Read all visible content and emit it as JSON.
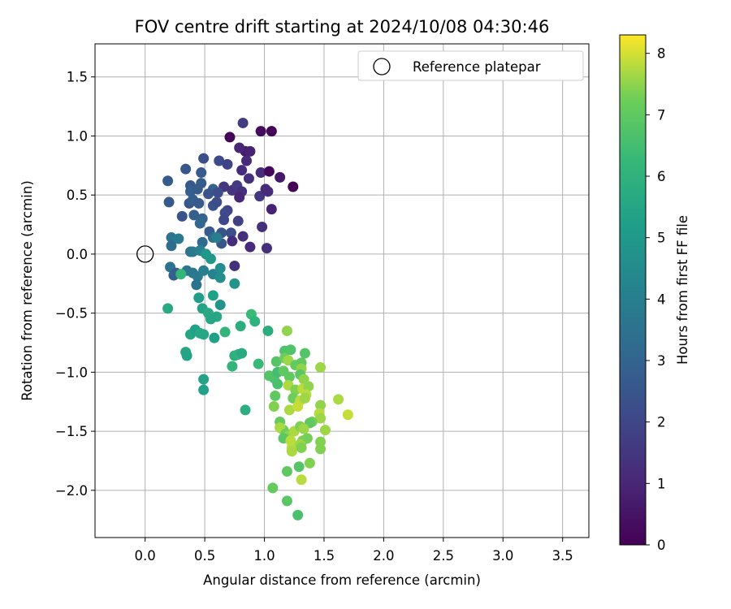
{
  "chart_data": {
    "type": "scatter",
    "title": "FOV centre drift starting at 2024/10/08 04:30:46",
    "xlabel": "Angular distance from reference (arcmin)",
    "ylabel": "Rotation from reference (arcmin)",
    "xlim": [
      -0.42,
      3.72
    ],
    "ylim": [
      -2.4,
      1.78
    ],
    "xticks": [
      0.0,
      0.5,
      1.0,
      1.5,
      2.0,
      2.5,
      3.0,
      3.5
    ],
    "xtick_labels": [
      "0.0",
      "0.5",
      "1.0",
      "1.5",
      "2.0",
      "2.5",
      "3.0",
      "3.5"
    ],
    "yticks": [
      -2.0,
      -1.5,
      -1.0,
      -0.5,
      0.0,
      0.5,
      1.0,
      1.5
    ],
    "ytick_labels": [
      "−2.0",
      "−1.5",
      "−1.0",
      "−0.5",
      "0.0",
      "0.5",
      "1.0",
      "1.5"
    ],
    "grid": true,
    "legend": {
      "position": "top-right",
      "entries": [
        "Reference platepar"
      ]
    },
    "reference_point": {
      "label": "Reference platepar",
      "x": 0.0,
      "y": 0.0
    },
    "colorbar": {
      "label": "Hours from first FF file",
      "colormap": "viridis",
      "range": [
        0,
        8.3
      ],
      "ticks": [
        0,
        1,
        2,
        3,
        4,
        5,
        6,
        7,
        8
      ],
      "tick_labels": [
        "0",
        "1",
        "2",
        "3",
        "4",
        "5",
        "6",
        "7",
        "8"
      ]
    },
    "points": [
      [
        0.71,
        0.99,
        0.1
      ],
      [
        0.82,
        1.11,
        1.7
      ],
      [
        0.97,
        1.04,
        0.3
      ],
      [
        1.06,
        1.04,
        0.1
      ],
      [
        0.84,
        0.87,
        0.7
      ],
      [
        0.88,
        0.87,
        0.9
      ],
      [
        0.79,
        0.9,
        1.0
      ],
      [
        0.49,
        0.81,
        2.3
      ],
      [
        0.62,
        0.79,
        2.1
      ],
      [
        0.69,
        0.76,
        1.9
      ],
      [
        0.85,
        0.79,
        1.1
      ],
      [
        0.34,
        0.72,
        2.5
      ],
      [
        0.47,
        0.69,
        2.6
      ],
      [
        0.97,
        0.69,
        1.2
      ],
      [
        1.04,
        0.7,
        0.2
      ],
      [
        0.81,
        0.71,
        1.2
      ],
      [
        0.19,
        0.62,
        2.7
      ],
      [
        0.38,
        0.58,
        2.6
      ],
      [
        0.47,
        0.6,
        2.7
      ],
      [
        0.57,
        0.55,
        2.9
      ],
      [
        0.66,
        0.57,
        1.5
      ],
      [
        0.73,
        0.54,
        1.4
      ],
      [
        0.77,
        0.58,
        1.6
      ],
      [
        0.87,
        0.64,
        1.3
      ],
      [
        1.13,
        0.65,
        0.6
      ],
      [
        1.24,
        0.57,
        0.1
      ],
      [
        0.38,
        0.53,
        2.8
      ],
      [
        0.44,
        0.55,
        2.7
      ],
      [
        0.53,
        0.51,
        2.4
      ],
      [
        0.61,
        0.52,
        2.2
      ],
      [
        0.81,
        0.53,
        1.3
      ],
      [
        0.79,
        0.48,
        1.0
      ],
      [
        0.96,
        0.49,
        1.5
      ],
      [
        1.03,
        0.53,
        1.2
      ],
      [
        1.01,
        0.55,
        1.1
      ],
      [
        0.2,
        0.44,
        2.6
      ],
      [
        0.37,
        0.43,
        2.5
      ],
      [
        0.4,
        0.46,
        2.8
      ],
      [
        0.45,
        0.43,
        2.7
      ],
      [
        0.57,
        0.41,
        2.4
      ],
      [
        0.6,
        0.44,
        2.2
      ],
      [
        0.69,
        0.37,
        2.0
      ],
      [
        0.67,
        0.35,
        2.1
      ],
      [
        1.06,
        0.38,
        0.9
      ],
      [
        0.31,
        0.32,
        2.4
      ],
      [
        0.41,
        0.33,
        2.8
      ],
      [
        0.48,
        0.3,
        2.9
      ],
      [
        0.66,
        0.29,
        2.0
      ],
      [
        0.78,
        0.28,
        1.8
      ],
      [
        0.98,
        0.23,
        1.3
      ],
      [
        0.46,
        0.26,
        3.1
      ],
      [
        0.54,
        0.19,
        2.6
      ],
      [
        0.64,
        0.18,
        2.5
      ],
      [
        0.72,
        0.18,
        2.3
      ],
      [
        0.82,
        0.15,
        1.3
      ],
      [
        0.73,
        0.11,
        1.2
      ],
      [
        0.22,
        0.14,
        3.6
      ],
      [
        0.28,
        0.13,
        3.8
      ],
      [
        0.48,
        0.1,
        3.2
      ],
      [
        0.57,
        0.14,
        3.2
      ],
      [
        0.64,
        0.09,
        2.5
      ],
      [
        0.6,
        0.14,
        4.0
      ],
      [
        0.88,
        0.06,
        1.1
      ],
      [
        1.02,
        0.05,
        1.3
      ],
      [
        0.22,
        0.07,
        3.3
      ],
      [
        0.38,
        0.02,
        3.5
      ],
      [
        0.4,
        0.02,
        3.8
      ],
      [
        0.46,
        0.03,
        4.2
      ],
      [
        0.51,
        0.0,
        4.9
      ],
      [
        0.55,
        -0.04,
        5.0
      ],
      [
        0.75,
        -0.1,
        1.3
      ],
      [
        0.21,
        -0.11,
        3.5
      ],
      [
        0.26,
        -0.16,
        2.7
      ],
      [
        0.24,
        -0.18,
        2.8
      ],
      [
        0.35,
        -0.14,
        3.7
      ],
      [
        0.4,
        -0.16,
        3.7
      ],
      [
        0.44,
        -0.19,
        3.8
      ],
      [
        0.49,
        -0.14,
        4.0
      ],
      [
        0.57,
        -0.17,
        4.1
      ],
      [
        0.63,
        -0.12,
        4.6
      ],
      [
        0.43,
        -0.26,
        3.6
      ],
      [
        0.63,
        -0.2,
        4.6
      ],
      [
        0.75,
        -0.25,
        4.8
      ],
      [
        0.3,
        -0.17,
        6.2
      ],
      [
        0.19,
        -0.46,
        5.6
      ],
      [
        0.45,
        -0.37,
        5.2
      ],
      [
        0.57,
        -0.35,
        5.3
      ],
      [
        0.63,
        -0.43,
        4.8
      ],
      [
        0.48,
        -0.46,
        5.4
      ],
      [
        0.53,
        -0.5,
        5.6
      ],
      [
        0.55,
        -0.55,
        5.5
      ],
      [
        0.6,
        -0.53,
        5.5
      ],
      [
        0.89,
        -0.51,
        6.3
      ],
      [
        0.92,
        -0.57,
        6.0
      ],
      [
        0.8,
        -0.61,
        5.8
      ],
      [
        0.38,
        -0.68,
        5.5
      ],
      [
        0.42,
        -0.64,
        5.3
      ],
      [
        0.46,
        -0.67,
        5.6
      ],
      [
        0.49,
        -0.68,
        5.5
      ],
      [
        0.58,
        -0.71,
        5.3
      ],
      [
        0.67,
        -0.66,
        6.1
      ],
      [
        1.03,
        -0.65,
        5.8
      ],
      [
        1.19,
        -0.65,
        7.5
      ],
      [
        0.34,
        -0.83,
        5.5
      ],
      [
        0.35,
        -0.86,
        5.4
      ],
      [
        0.75,
        -0.86,
        5.9
      ],
      [
        0.78,
        -0.85,
        6.0
      ],
      [
        0.81,
        -0.84,
        5.7
      ],
      [
        1.17,
        -0.82,
        6.7
      ],
      [
        1.22,
        -0.81,
        6.7
      ],
      [
        1.34,
        -0.84,
        6.8
      ],
      [
        0.73,
        -0.95,
        6.1
      ],
      [
        0.95,
        -0.93,
        6.3
      ],
      [
        1.1,
        -0.91,
        6.8
      ],
      [
        1.17,
        -0.88,
        7.2
      ],
      [
        1.2,
        -0.9,
        7.6
      ],
      [
        1.26,
        -0.94,
        7.1
      ],
      [
        1.31,
        -0.92,
        7.0
      ],
      [
        1.31,
        -0.97,
        7.5
      ],
      [
        1.47,
        -0.96,
        7.6
      ],
      [
        1.04,
        -1.03,
        6.8
      ],
      [
        1.08,
        -1.05,
        6.7
      ],
      [
        1.11,
        -1.0,
        6.5
      ],
      [
        1.16,
        -0.99,
        7.0
      ],
      [
        1.21,
        -1.04,
        7.0
      ],
      [
        1.3,
        -1.02,
        6.9
      ],
      [
        1.33,
        -1.06,
        7.5
      ],
      [
        1.11,
        -1.1,
        6.6
      ],
      [
        1.2,
        -1.11,
        7.7
      ],
      [
        1.26,
        -1.15,
        7.4
      ],
      [
        1.32,
        -1.14,
        7.8
      ],
      [
        1.37,
        -1.12,
        7.5
      ],
      [
        1.35,
        -1.19,
        7.8
      ],
      [
        0.49,
        -1.06,
        5.4
      ],
      [
        0.49,
        -1.15,
        5.3
      ],
      [
        1.09,
        -1.2,
        7.0
      ],
      [
        1.24,
        -1.22,
        7.2
      ],
      [
        1.3,
        -1.24,
        7.8
      ],
      [
        1.34,
        -1.22,
        7.6
      ],
      [
        0.84,
        -1.32,
        5.8
      ],
      [
        1.08,
        -1.29,
        7.4
      ],
      [
        1.21,
        -1.32,
        7.7
      ],
      [
        1.28,
        -1.29,
        7.9
      ],
      [
        1.47,
        -1.28,
        7.5
      ],
      [
        1.62,
        -1.23,
        7.7
      ],
      [
        1.7,
        -1.36,
        7.9
      ],
      [
        1.46,
        -1.35,
        7.8
      ],
      [
        1.47,
        -1.39,
        7.6
      ],
      [
        1.4,
        -1.42,
        7.3
      ],
      [
        1.38,
        -1.43,
        7.0
      ],
      [
        1.13,
        -1.42,
        7.1
      ],
      [
        1.16,
        -1.49,
        7.3
      ],
      [
        1.13,
        -1.47,
        7.7
      ],
      [
        1.18,
        -1.52,
        7.2
      ],
      [
        1.2,
        -1.54,
        7.5
      ],
      [
        1.25,
        -1.5,
        7.7
      ],
      [
        1.3,
        -1.46,
        7.4
      ],
      [
        1.33,
        -1.48,
        7.6
      ],
      [
        1.51,
        -1.49,
        7.6
      ],
      [
        1.16,
        -1.56,
        6.9
      ],
      [
        1.22,
        -1.58,
        7.8
      ],
      [
        1.32,
        -1.58,
        7.4
      ],
      [
        1.36,
        -1.56,
        7.3
      ],
      [
        1.47,
        -1.59,
        7.4
      ],
      [
        1.23,
        -1.64,
        7.8
      ],
      [
        1.23,
        -1.67,
        7.7
      ],
      [
        1.3,
        -1.61,
        7.6
      ],
      [
        1.31,
        -1.64,
        7.4
      ],
      [
        1.47,
        -1.65,
        7.4
      ],
      [
        1.38,
        -1.77,
        7.4
      ],
      [
        1.19,
        -1.84,
        7.0
      ],
      [
        1.29,
        -1.8,
        6.8
      ],
      [
        1.31,
        -1.91,
        7.8
      ],
      [
        1.07,
        -1.98,
        7.1
      ],
      [
        1.19,
        -2.09,
        6.9
      ],
      [
        1.28,
        -2.21,
        6.6
      ]
    ]
  }
}
